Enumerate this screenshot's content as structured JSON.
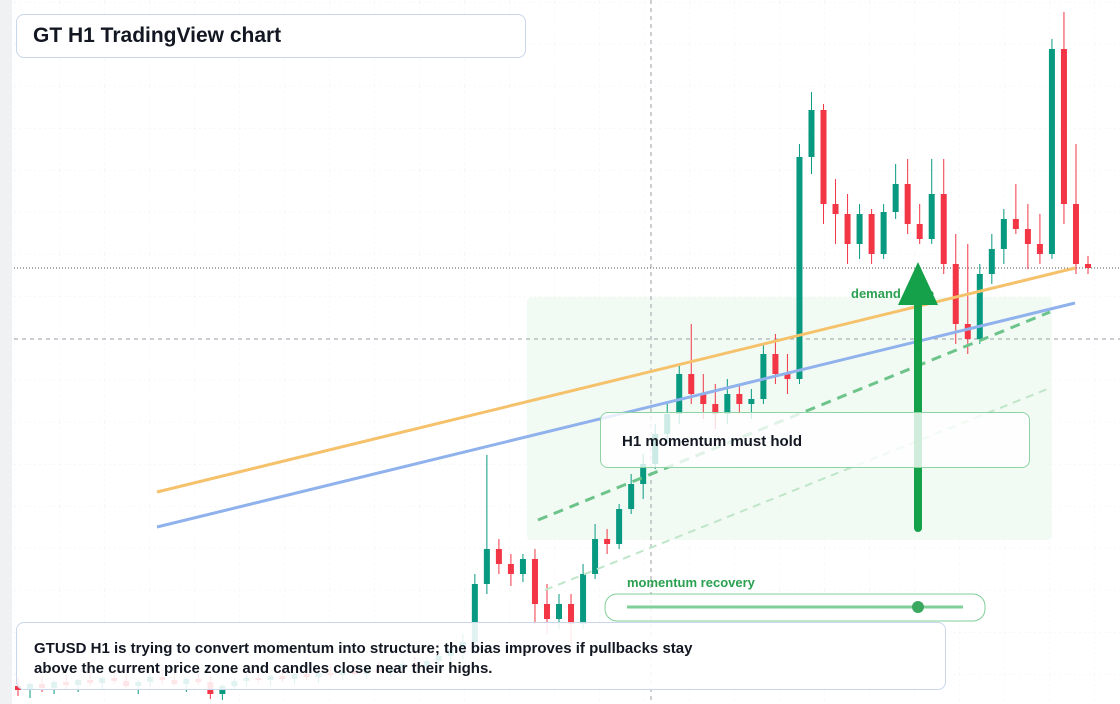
{
  "title": "GT H1 TradingView chart",
  "chart_data": {
    "type": "candlestick",
    "ylim": [
      0,
      704
    ],
    "up_color": "#089981",
    "down_color": "#f23645",
    "candles": [
      [
        18,
        26,
        8,
        14
      ],
      [
        14,
        22,
        6,
        20
      ],
      [
        20,
        28,
        12,
        16
      ],
      [
        16,
        24,
        10,
        22
      ],
      [
        22,
        30,
        15,
        19
      ],
      [
        19,
        25,
        12,
        24
      ],
      [
        24,
        32,
        18,
        21
      ],
      [
        21,
        28,
        14,
        26
      ],
      [
        26,
        33,
        20,
        23
      ],
      [
        23,
        29,
        16,
        18
      ],
      [
        18,
        24,
        10,
        22
      ],
      [
        22,
        30,
        17,
        27
      ],
      [
        27,
        34,
        20,
        24
      ],
      [
        24,
        30,
        18,
        20
      ],
      [
        20,
        27,
        12,
        25
      ],
      [
        25,
        31,
        19,
        22
      ],
      [
        22,
        28,
        5,
        10
      ],
      [
        10,
        20,
        4,
        18
      ],
      [
        18,
        26,
        14,
        23
      ],
      [
        23,
        30,
        17,
        26
      ],
      [
        26,
        33,
        21,
        24
      ],
      [
        24,
        29,
        18,
        28
      ],
      [
        28,
        35,
        22,
        25
      ],
      [
        25,
        32,
        20,
        30
      ],
      [
        30,
        36,
        24,
        27
      ],
      [
        27,
        33,
        21,
        31
      ],
      [
        31,
        38,
        26,
        29
      ],
      [
        29,
        36,
        24,
        33
      ],
      [
        33,
        40,
        28,
        30
      ],
      [
        30,
        37,
        25,
        35
      ],
      [
        35,
        42,
        30,
        32
      ],
      [
        32,
        39,
        27,
        36
      ],
      [
        36,
        44,
        31,
        40
      ],
      [
        40,
        47,
        34,
        38
      ],
      [
        38,
        46,
        32,
        43
      ],
      [
        43,
        52,
        37,
        48
      ],
      [
        48,
        60,
        40,
        55
      ],
      [
        55,
        70,
        45,
        62
      ],
      [
        62,
        130,
        50,
        120
      ],
      [
        120,
        249,
        110,
        155
      ],
      [
        155,
        165,
        130,
        140
      ],
      [
        140,
        150,
        118,
        130
      ],
      [
        130,
        150,
        122,
        145
      ],
      [
        145,
        155,
        80,
        100
      ],
      [
        100,
        120,
        70,
        85
      ],
      [
        85,
        110,
        75,
        100
      ],
      [
        100,
        110,
        60,
        80
      ],
      [
        80,
        140,
        75,
        130
      ],
      [
        130,
        180,
        125,
        165
      ],
      [
        165,
        175,
        150,
        160
      ],
      [
        160,
        200,
        155,
        195
      ],
      [
        195,
        230,
        190,
        220
      ],
      [
        220,
        250,
        205,
        240
      ],
      [
        240,
        280,
        235,
        270
      ],
      [
        270,
        300,
        260,
        290
      ],
      [
        290,
        340,
        280,
        330
      ],
      [
        330,
        380,
        300,
        310
      ],
      [
        310,
        330,
        285,
        300
      ],
      [
        300,
        320,
        275,
        290
      ],
      [
        290,
        325,
        280,
        310
      ],
      [
        310,
        320,
        290,
        300
      ],
      [
        300,
        315,
        285,
        305
      ],
      [
        305,
        360,
        300,
        350
      ],
      [
        350,
        370,
        320,
        330
      ],
      [
        330,
        350,
        310,
        325
      ],
      [
        325,
        560,
        320,
        547
      ],
      [
        547,
        612,
        530,
        594
      ],
      [
        594,
        600,
        480,
        500
      ],
      [
        500,
        525,
        460,
        490
      ],
      [
        490,
        510,
        440,
        460
      ],
      [
        460,
        500,
        445,
        490
      ],
      [
        490,
        495,
        440,
        450
      ],
      [
        450,
        500,
        445,
        492
      ],
      [
        492,
        540,
        485,
        520
      ],
      [
        520,
        545,
        470,
        480
      ],
      [
        480,
        500,
        460,
        465
      ],
      [
        465,
        545,
        460,
        510
      ],
      [
        510,
        545,
        430,
        440
      ],
      [
        440,
        470,
        360,
        380
      ],
      [
        380,
        460,
        350,
        365
      ],
      [
        365,
        440,
        360,
        430
      ],
      [
        430,
        470,
        420,
        455
      ],
      [
        455,
        495,
        440,
        485
      ],
      [
        485,
        520,
        470,
        475
      ],
      [
        475,
        500,
        435,
        460
      ],
      [
        460,
        490,
        440,
        450
      ],
      [
        450,
        665,
        445,
        655
      ],
      [
        655,
        692,
        480,
        500
      ],
      [
        500,
        560,
        430,
        440
      ],
      [
        440,
        448,
        430,
        436
      ]
    ]
  },
  "annotations": {
    "zone_label": "demand zone",
    "callout": "H1 momentum must hold",
    "slider_label": "momentum recovery"
  },
  "note": "GTUSD H1 is trying to convert momentum into structure; the bias improves if pullbacks stay above the current price zone and candles close near their highs."
}
